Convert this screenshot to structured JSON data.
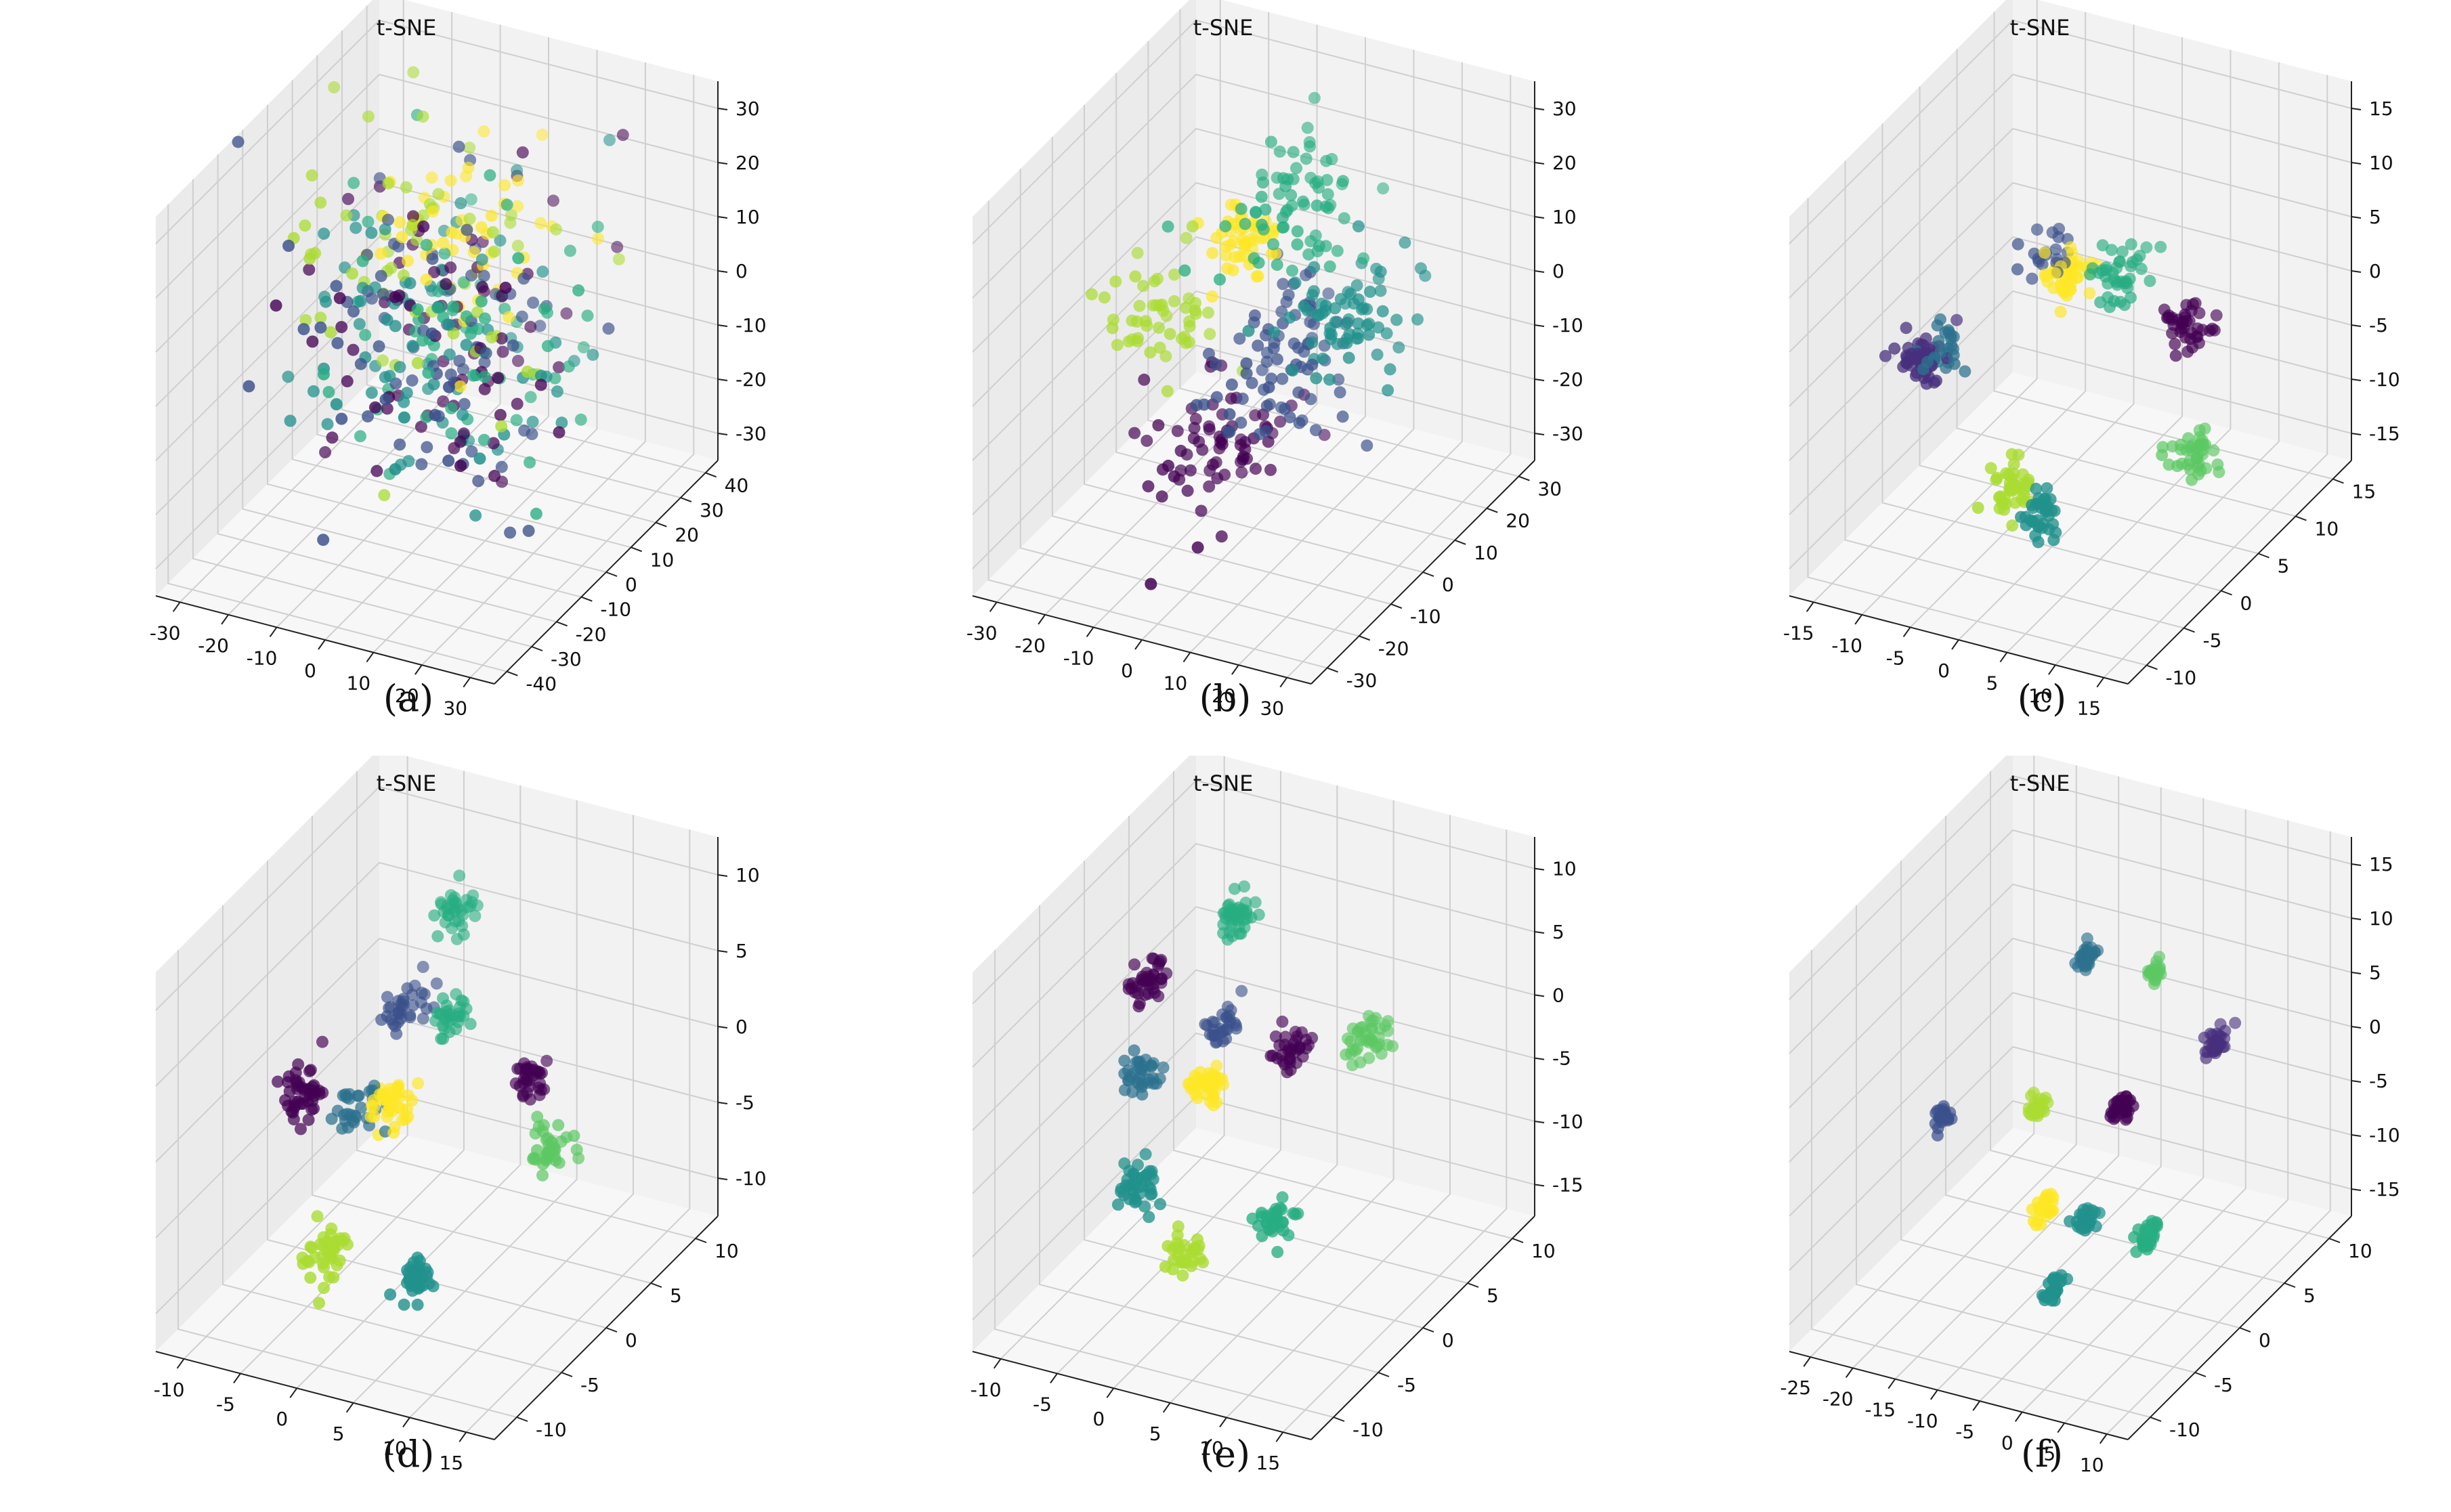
{
  "colors": {
    "c0": "#440154",
    "c1": "#472f7d",
    "c2": "#3b518b",
    "c3": "#2c718e",
    "c4": "#21918c",
    "c5": "#27ad81",
    "c6": "#5cc863",
    "c7": "#aadc32",
    "c8": "#fde725"
  },
  "chart_data": [
    {
      "id": "a",
      "type": "scatter",
      "projection": "3d",
      "title": "t-SNE",
      "caption": "(a)",
      "xticks": [
        "-30",
        "-20",
        "-10",
        "0",
        "10",
        "20",
        "30"
      ],
      "yticks": [
        "-40",
        "-30",
        "-20",
        "-10",
        "0",
        "10",
        "20",
        "30",
        "40"
      ],
      "zticks": [
        "30",
        "20",
        "10",
        "0",
        "-10",
        "-20",
        "-30"
      ],
      "xlim": [
        -35,
        35
      ],
      "ylim": [
        -45,
        45
      ],
      "zlim": [
        -38,
        38
      ],
      "clusters": [
        {
          "class": 0,
          "center": [
            0,
            0,
            0
          ],
          "spread": 30,
          "count": 80
        },
        {
          "class": 2,
          "center": [
            0,
            0,
            0
          ],
          "spread": 30,
          "count": 80
        },
        {
          "class": 4,
          "center": [
            0,
            0,
            0
          ],
          "spread": 30,
          "count": 80
        },
        {
          "class": 5,
          "center": [
            5,
            0,
            5
          ],
          "spread": 28,
          "count": 70
        },
        {
          "class": 7,
          "center": [
            -5,
            5,
            10
          ],
          "spread": 28,
          "count": 60
        },
        {
          "class": 8,
          "center": [
            0,
            10,
            15
          ],
          "spread": 20,
          "count": 50
        }
      ]
    },
    {
      "id": "b",
      "type": "scatter",
      "projection": "3d",
      "title": "t-SNE",
      "caption": "(b)",
      "xticks": [
        "-30",
        "-20",
        "-10",
        "0",
        "10",
        "20",
        "30"
      ],
      "yticks": [
        "-30",
        "-20",
        "-10",
        "0",
        "10",
        "20",
        "30"
      ],
      "zticks": [
        "30",
        "20",
        "10",
        "0",
        "-10",
        "-20",
        "-30"
      ],
      "xlim": [
        -35,
        35
      ],
      "ylim": [
        -35,
        35
      ],
      "zlim": [
        -38,
        38
      ],
      "clusters": [
        {
          "class": 0,
          "center": [
            -10,
            0,
            -25
          ],
          "spread": 14,
          "count": 70
        },
        {
          "class": 2,
          "center": [
            5,
            0,
            -5
          ],
          "spread": 14,
          "count": 80
        },
        {
          "class": 4,
          "center": [
            20,
            0,
            10
          ],
          "spread": 12,
          "count": 70
        },
        {
          "class": 5,
          "center": [
            5,
            5,
            25
          ],
          "spread": 14,
          "count": 70
        },
        {
          "class": 7,
          "center": [
            -20,
            0,
            0
          ],
          "spread": 12,
          "count": 50
        },
        {
          "class": 8,
          "center": [
            -5,
            5,
            15
          ],
          "spread": 8,
          "count": 50
        }
      ]
    },
    {
      "id": "c",
      "type": "scatter",
      "projection": "3d",
      "title": "t-SNE",
      "caption": "(c)",
      "xticks": [
        "-15",
        "-10",
        "-5",
        "0",
        "5",
        "10",
        "15"
      ],
      "yticks": [
        "-10",
        "-5",
        "0",
        "5",
        "10",
        "15"
      ],
      "zticks": [
        "15",
        "10",
        "5",
        "0",
        "-5",
        "-10",
        "-15"
      ],
      "xlim": [
        -17,
        17
      ],
      "ylim": [
        -13,
        18
      ],
      "zlim": [
        -17,
        17
      ],
      "clusters": [
        {
          "class": 1,
          "center": [
            -13,
            0,
            -3
          ],
          "spread": 2.5,
          "count": 50
        },
        {
          "class": 3,
          "center": [
            -11,
            0,
            -2
          ],
          "spread": 2.0,
          "count": 25
        },
        {
          "class": 8,
          "center": [
            -2,
            5,
            4
          ],
          "spread": 2.0,
          "count": 45
        },
        {
          "class": 2,
          "center": [
            -4,
            5,
            5
          ],
          "spread": 2.0,
          "count": 20
        },
        {
          "class": 5,
          "center": [
            3,
            5,
            5
          ],
          "spread": 2.5,
          "count": 40
        },
        {
          "class": 0,
          "center": [
            10,
            5,
            2
          ],
          "spread": 2.0,
          "count": 40
        },
        {
          "class": 6,
          "center": [
            12,
            3,
            -8
          ],
          "spread": 2.2,
          "count": 40
        },
        {
          "class": 7,
          "center": [
            -2,
            -3,
            -10
          ],
          "spread": 2.2,
          "count": 40
        },
        {
          "class": 4,
          "center": [
            1,
            -3,
            -12
          ],
          "spread": 2.0,
          "count": 35
        }
      ]
    },
    {
      "id": "d",
      "type": "scatter",
      "projection": "3d",
      "title": "t-SNE",
      "caption": "(d)",
      "xticks": [
        "-10",
        "-5",
        "0",
        "5",
        "10",
        "15"
      ],
      "yticks": [
        "-10",
        "-5",
        "0",
        "5",
        "10"
      ],
      "zticks": [
        "10",
        "5",
        "0",
        "-5",
        "-10"
      ],
      "xlim": [
        -13,
        17
      ],
      "ylim": [
        -13,
        13
      ],
      "zlim": [
        -14,
        13
      ],
      "clusters": [
        {
          "class": 5,
          "center": [
            0,
            5,
            9
          ],
          "spread": 1.8,
          "count": 35
        },
        {
          "class": 2,
          "center": [
            -3,
            3,
            3
          ],
          "spread": 1.8,
          "count": 35
        },
        {
          "class": 5,
          "center": [
            1,
            3,
            3
          ],
          "spread": 1.8,
          "count": 30
        },
        {
          "class": 0,
          "center": [
            -10,
            0,
            -3
          ],
          "spread": 2.0,
          "count": 45
        },
        {
          "class": 3,
          "center": [
            -5,
            0,
            -3
          ],
          "spread": 2.0,
          "count": 30
        },
        {
          "class": 8,
          "center": [
            -2,
            0,
            -2
          ],
          "spread": 1.8,
          "count": 40
        },
        {
          "class": 0,
          "center": [
            8,
            3,
            0
          ],
          "spread": 1.5,
          "count": 35
        },
        {
          "class": 6,
          "center": [
            12,
            0,
            -2
          ],
          "spread": 1.8,
          "count": 35
        },
        {
          "class": 7,
          "center": [
            -4,
            -5,
            -10
          ],
          "spread": 1.8,
          "count": 40
        },
        {
          "class": 4,
          "center": [
            4,
            -5,
            -10
          ],
          "spread": 1.6,
          "count": 35
        }
      ]
    },
    {
      "id": "e",
      "type": "scatter",
      "projection": "3d",
      "title": "t-SNE",
      "caption": "(e)",
      "xticks": [
        "-10",
        "-5",
        "0",
        "5",
        "10",
        "15"
      ],
      "yticks": [
        "-10",
        "-5",
        "0",
        "5",
        "10"
      ],
      "zticks": [
        "10",
        "5",
        "0",
        "-5",
        "-10",
        "-15"
      ],
      "xlim": [
        -13,
        17
      ],
      "ylim": [
        -13,
        13
      ],
      "zlim": [
        -17,
        13
      ],
      "clusters": [
        {
          "class": 5,
          "center": [
            -2,
            3,
            9
          ],
          "spread": 1.5,
          "count": 40
        },
        {
          "class": 0,
          "center": [
            -9,
            2,
            3
          ],
          "spread": 1.5,
          "count": 40
        },
        {
          "class": 3,
          "center": [
            -8,
            0,
            -3
          ],
          "spread": 1.5,
          "count": 35
        },
        {
          "class": 2,
          "center": [
            -3,
            3,
            0
          ],
          "spread": 1.5,
          "count": 30
        },
        {
          "class": 8,
          "center": [
            -2,
            0,
            -2
          ],
          "spread": 1.5,
          "count": 45
        },
        {
          "class": 0,
          "center": [
            3,
            3,
            0
          ],
          "spread": 1.5,
          "count": 35
        },
        {
          "class": 6,
          "center": [
            10,
            3,
            2
          ],
          "spread": 1.6,
          "count": 40
        },
        {
          "class": 4,
          "center": [
            -6,
            -3,
            -9
          ],
          "spread": 1.6,
          "count": 40
        },
        {
          "class": 7,
          "center": [
            0,
            -5,
            -12
          ],
          "spread": 1.5,
          "count": 30
        },
        {
          "class": 5,
          "center": [
            6,
            -3,
            -9
          ],
          "spread": 1.5,
          "count": 35
        }
      ]
    },
    {
      "id": "f",
      "type": "scatter",
      "projection": "3d",
      "title": "t-SNE",
      "caption": "(f)",
      "xticks": [
        "-25",
        "-20",
        "-15",
        "-10",
        "-5",
        "0",
        "5",
        "10"
      ],
      "yticks": [
        "-10",
        "-5",
        "0",
        "5",
        "10"
      ],
      "zticks": [
        "15",
        "10",
        "5",
        "0",
        "-5",
        "-10",
        "-15"
      ],
      "xlim": [
        -27,
        13
      ],
      "ylim": [
        -13,
        13
      ],
      "zlim": [
        -17,
        17
      ],
      "clusters": [
        {
          "class": 2,
          "center": [
            -22,
            0,
            -5
          ],
          "spread": 1.0,
          "count": 25
        },
        {
          "class": 3,
          "center": [
            -8,
            3,
            10
          ],
          "spread": 1.0,
          "count": 30
        },
        {
          "class": 6,
          "center": [
            0,
            3,
            10
          ],
          "spread": 0.8,
          "count": 25
        },
        {
          "class": 1,
          "center": [
            7,
            3,
            5
          ],
          "spread": 1.0,
          "count": 35
        },
        {
          "class": 7,
          "center": [
            -11,
            0,
            -2
          ],
          "spread": 1.0,
          "count": 25
        },
        {
          "class": 0,
          "center": [
            -1,
            0,
            0
          ],
          "spread": 1.0,
          "count": 35
        },
        {
          "class": 8,
          "center": [
            -7,
            -3,
            -8
          ],
          "spread": 1.0,
          "count": 30
        },
        {
          "class": 4,
          "center": [
            -2,
            -3,
            -8
          ],
          "spread": 1.0,
          "count": 30
        },
        {
          "class": 5,
          "center": [
            5,
            -3,
            -8
          ],
          "spread": 1.2,
          "count": 35
        },
        {
          "class": 4,
          "center": [
            -4,
            -5,
            -13
          ],
          "spread": 1.0,
          "count": 30
        }
      ]
    }
  ]
}
